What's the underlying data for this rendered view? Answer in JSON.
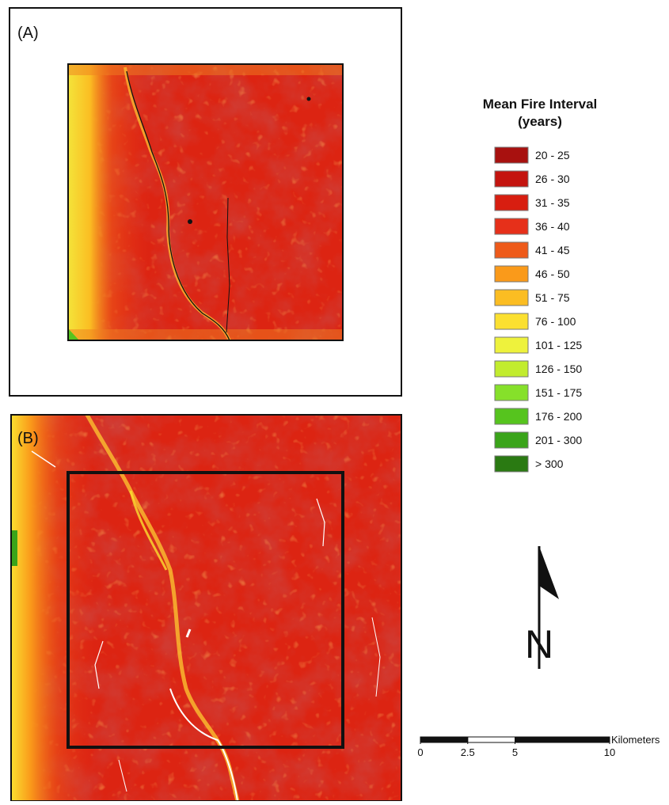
{
  "panels": [
    {
      "label": "(A)"
    },
    {
      "label": "(B)"
    }
  ],
  "legend": {
    "title": [
      "Mean Fire Interval",
      "(years)"
    ],
    "items": [
      {
        "label": "20 - 25",
        "color": "#a8110f"
      },
      {
        "label": "26 - 30",
        "color": "#c4140f"
      },
      {
        "label": "31 - 35",
        "color": "#d81e10"
      },
      {
        "label": "36 - 40",
        "color": "#e6301a"
      },
      {
        "label": "41 - 45",
        "color": "#ee5a1a"
      },
      {
        "label": "46 - 50",
        "color": "#fa9a1a"
      },
      {
        "label": "51 - 75",
        "color": "#fbbd22"
      },
      {
        "label": "76 - 100",
        "color": "#fbe030"
      },
      {
        "label": "101 - 125",
        "color": "#eef23c"
      },
      {
        "label": "126 - 150",
        "color": "#c2ec2e"
      },
      {
        "label": "151 - 175",
        "color": "#86e02a"
      },
      {
        "label": "176 - 200",
        "color": "#56c41e"
      },
      {
        "label": "201 - 300",
        "color": "#3aa41a"
      },
      {
        "label": "> 300",
        "color": "#2a7a12"
      }
    ]
  },
  "north_arrow": {
    "label": "N"
  },
  "scale_bar": {
    "unit": "Kilometers",
    "ticks": [
      0,
      2.5,
      5,
      10
    ]
  }
}
